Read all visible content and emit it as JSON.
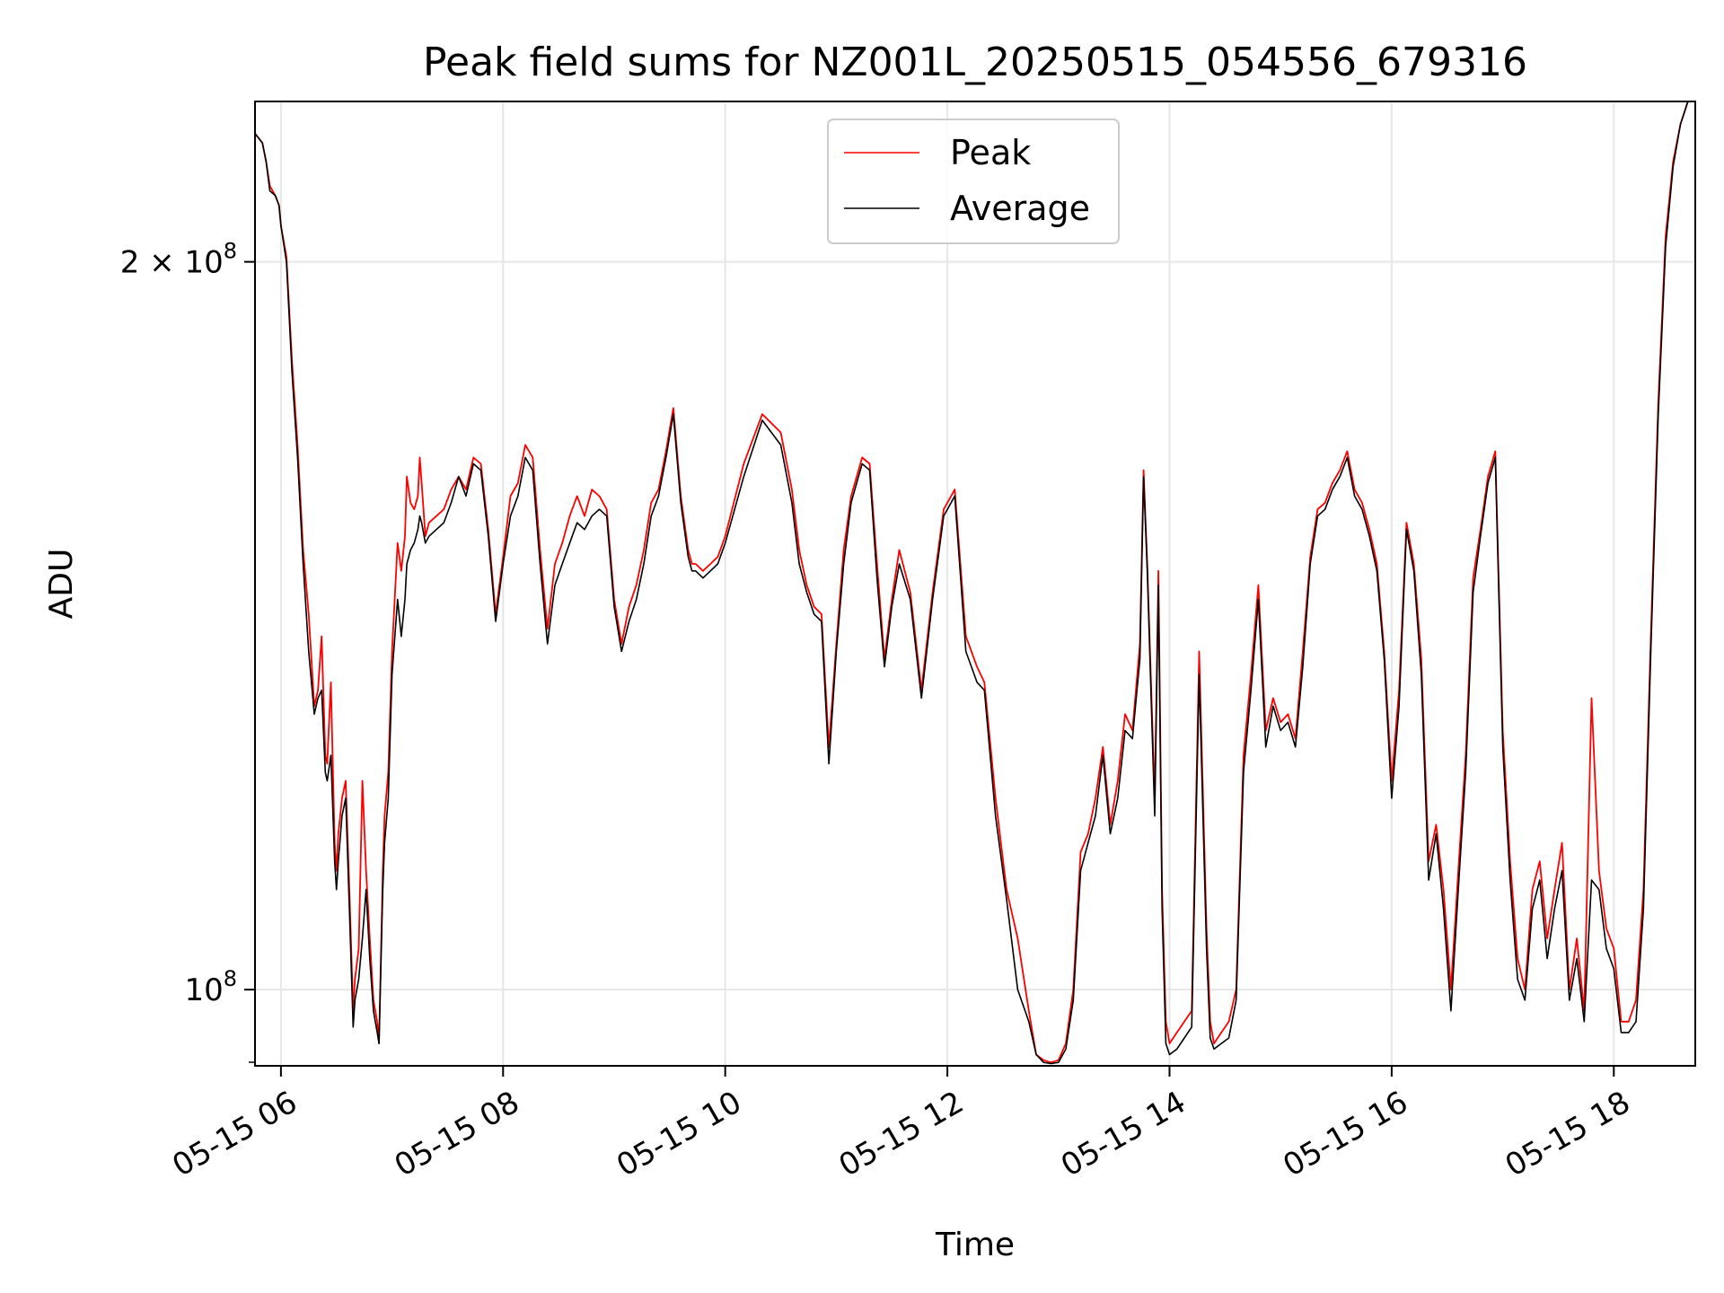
{
  "chart_data": {
    "type": "line",
    "title": "Peak field sums for NZ001L_20250515_054556_679316",
    "xlabel": "Time",
    "ylabel": "ADU",
    "yscale": "log",
    "xlim": [
      "2025-05-15 05:46",
      "2025-05-15 18:44"
    ],
    "ylim": [
      93000000.0,
      233000000.0
    ],
    "x_ticks": [
      "2025-05-15 06:00",
      "2025-05-15 08:00",
      "2025-05-15 10:00",
      "2025-05-15 12:00",
      "2025-05-15 14:00",
      "2025-05-15 16:00",
      "2025-05-15 18:00"
    ],
    "x_tick_labels": [
      "05-15 06",
      "05-15 08",
      "05-15 10",
      "05-15 12",
      "05-15 14",
      "05-15 16",
      "05-15 18"
    ],
    "y_ticks": [
      {
        "value": 200000000,
        "mantissa": "2",
        "times": "×",
        "base": "10",
        "exp": "8"
      },
      {
        "value": 100000000,
        "mantissa": "",
        "times": "",
        "base": "10",
        "exp": "8"
      }
    ],
    "grid": true,
    "legend_position": "top-center",
    "series": [
      {
        "name": "Peak",
        "color": "#ff0000",
        "x": [
          "05:46",
          "05:50",
          "05:52",
          "05:54",
          "05:57",
          "05:59",
          "06:00",
          "06:03",
          "06:06",
          "06:09",
          "06:12",
          "06:15",
          "06:18",
          "06:20",
          "06:22",
          "06:24",
          "06:25",
          "06:27",
          "06:29",
          "06:30",
          "06:31",
          "06:33",
          "06:35",
          "06:37",
          "06:39",
          "06:40",
          "06:42",
          "06:44",
          "06:46",
          "06:48",
          "06:50",
          "06:52",
          "06:53",
          "06:55",
          "06:56",
          "06:58",
          "07:00",
          "07:03",
          "07:05",
          "07:07",
          "07:08",
          "07:10",
          "07:12",
          "07:14",
          "07:15",
          "07:16",
          "07:18",
          "07:20",
          "07:24",
          "07:28",
          "07:32",
          "07:36",
          "07:40",
          "07:44",
          "07:48",
          "07:52",
          "07:56",
          "08:00",
          "08:04",
          "08:08",
          "08:12",
          "08:16",
          "08:20",
          "08:24",
          "08:28",
          "08:32",
          "08:36",
          "08:40",
          "08:44",
          "08:48",
          "08:52",
          "08:56",
          "09:00",
          "09:04",
          "09:08",
          "09:12",
          "09:16",
          "09:20",
          "09:24",
          "09:28",
          "09:32",
          "09:36",
          "09:40",
          "09:42",
          "09:44",
          "09:48",
          "09:52",
          "09:56",
          "10:00",
          "10:10",
          "10:20",
          "10:30",
          "10:36",
          "10:40",
          "10:44",
          "10:48",
          "10:52",
          "10:56",
          "11:00",
          "11:04",
          "11:08",
          "11:12",
          "11:14",
          "11:18",
          "11:22",
          "11:26",
          "11:30",
          "11:34",
          "11:40",
          "11:46",
          "11:52",
          "11:58",
          "12:04",
          "12:10",
          "12:16",
          "12:20",
          "12:26",
          "12:32",
          "12:38",
          "12:44",
          "12:48",
          "12:52",
          "12:56",
          "13:00",
          "13:04",
          "13:08",
          "13:12",
          "13:16",
          "13:20",
          "13:24",
          "13:28",
          "13:32",
          "13:36",
          "13:40",
          "13:44",
          "13:46",
          "13:48",
          "13:52",
          "13:54",
          "13:56",
          "13:58",
          "14:00",
          "14:04",
          "14:08",
          "14:12",
          "14:16",
          "14:20",
          "14:22",
          "14:24",
          "14:28",
          "14:32",
          "14:36",
          "14:40",
          "14:44",
          "14:48",
          "14:52",
          "14:56",
          "15:00",
          "15:04",
          "15:08",
          "15:12",
          "15:16",
          "15:20",
          "15:24",
          "15:28",
          "15:32",
          "15:36",
          "15:40",
          "15:44",
          "15:48",
          "15:52",
          "15:56",
          "16:00",
          "16:04",
          "16:08",
          "16:12",
          "16:16",
          "16:20",
          "16:24",
          "16:28",
          "16:32",
          "16:36",
          "16:40",
          "16:44",
          "16:48",
          "16:52",
          "16:56",
          "17:00",
          "17:04",
          "17:08",
          "17:12",
          "17:16",
          "17:20",
          "17:24",
          "17:28",
          "17:32",
          "17:36",
          "17:40",
          "17:44",
          "17:48",
          "17:52",
          "17:56",
          "18:00",
          "18:04",
          "18:08",
          "18:12",
          "18:16",
          "18:20",
          "18:24",
          "18:28",
          "18:32",
          "18:36",
          "18:40",
          "18:44"
        ],
        "values": [
          226000000,
          224000000,
          220000000,
          215000000,
          213000000,
          211000000,
          207000000,
          201000000,
          182000000,
          168000000,
          152000000,
          143000000,
          131000000,
          133000000,
          140000000,
          125000000,
          124000000,
          134000000,
          115000000,
          112000000,
          116000000,
          120000000,
          122000000,
          110000000,
          98000000,
          101000000,
          104000000,
          122000000,
          112000000,
          105000000,
          99000000,
          97000000,
          95000000,
          112000000,
          118000000,
          123000000,
          138000000,
          153000000,
          149000000,
          154000000,
          163000000,
          159000000,
          158000000,
          160000000,
          166000000,
          162000000,
          154000000,
          156000000,
          157000000,
          158000000,
          161000000,
          163000000,
          161000000,
          166000000,
          165000000,
          155000000,
          143000000,
          151000000,
          160000000,
          162000000,
          168000000,
          166000000,
          152000000,
          141000000,
          150000000,
          153000000,
          157000000,
          160000000,
          157000000,
          161000000,
          160000000,
          158000000,
          145000000,
          139000000,
          144000000,
          147000000,
          152000000,
          159000000,
          161000000,
          167000000,
          174000000,
          160000000,
          152000000,
          150000000,
          150000000,
          149000000,
          150000000,
          151000000,
          154000000,
          165000000,
          173000000,
          170000000,
          161000000,
          152000000,
          147000000,
          144000000,
          143000000,
          126000000,
          139000000,
          152000000,
          160000000,
          164000000,
          166000000,
          165000000,
          150000000,
          137000000,
          145000000,
          152000000,
          146000000,
          133000000,
          146000000,
          158000000,
          161000000,
          140000000,
          136000000,
          134000000,
          120000000,
          110000000,
          105000000,
          98000000,
          94000000,
          93500000,
          93300000,
          93500000,
          95000000,
          100000000,
          114000000,
          116000000,
          120000000,
          126000000,
          117000000,
          122000000,
          130000000,
          128000000,
          139000000,
          164000000,
          150000000,
          120000000,
          149000000,
          110000000,
          97000000,
          95000000,
          96000000,
          97000000,
          98000000,
          138000000,
          106000000,
          97000000,
          95000000,
          96000000,
          97000000,
          100000000,
          125000000,
          135000000,
          147000000,
          128000000,
          132000000,
          129000000,
          130000000,
          127000000,
          138000000,
          151000000,
          158000000,
          159000000,
          162000000,
          164000000,
          167000000,
          161000000,
          159000000,
          155000000,
          150000000,
          138000000,
          122000000,
          133000000,
          156000000,
          150000000,
          137000000,
          113000000,
          117000000,
          110000000,
          100000000,
          112000000,
          125000000,
          148000000,
          155000000,
          163000000,
          167000000,
          128000000,
          113000000,
          103000000,
          100000000,
          110000000,
          113000000,
          105000000,
          110000000,
          115000000,
          100000000,
          105000000,
          98000000,
          132000000,
          112000000,
          106000000,
          104000000,
          97000000,
          97000000,
          99000000,
          110000000,
          140000000,
          175000000,
          205000000,
          220000000,
          228000000,
          233000000,
          233000000
        ]
      },
      {
        "name": "Average",
        "color": "#000000",
        "x": [
          "05:46",
          "05:50",
          "05:52",
          "05:54",
          "05:57",
          "05:59",
          "06:00",
          "06:03",
          "06:06",
          "06:09",
          "06:12",
          "06:15",
          "06:18",
          "06:20",
          "06:22",
          "06:24",
          "06:25",
          "06:27",
          "06:29",
          "06:30",
          "06:31",
          "06:33",
          "06:35",
          "06:37",
          "06:39",
          "06:40",
          "06:42",
          "06:44",
          "06:46",
          "06:48",
          "06:50",
          "06:52",
          "06:53",
          "06:55",
          "06:56",
          "06:58",
          "07:00",
          "07:03",
          "07:05",
          "07:07",
          "07:08",
          "07:10",
          "07:12",
          "07:14",
          "07:15",
          "07:16",
          "07:18",
          "07:20",
          "07:24",
          "07:28",
          "07:32",
          "07:36",
          "07:40",
          "07:44",
          "07:48",
          "07:52",
          "07:56",
          "08:00",
          "08:04",
          "08:08",
          "08:12",
          "08:16",
          "08:20",
          "08:24",
          "08:28",
          "08:32",
          "08:36",
          "08:40",
          "08:44",
          "08:48",
          "08:52",
          "08:56",
          "09:00",
          "09:04",
          "09:08",
          "09:12",
          "09:16",
          "09:20",
          "09:24",
          "09:28",
          "09:32",
          "09:36",
          "09:40",
          "09:42",
          "09:44",
          "09:48",
          "09:52",
          "09:56",
          "10:00",
          "10:10",
          "10:20",
          "10:30",
          "10:36",
          "10:40",
          "10:44",
          "10:48",
          "10:52",
          "10:56",
          "11:00",
          "11:04",
          "11:08",
          "11:12",
          "11:14",
          "11:18",
          "11:22",
          "11:26",
          "11:30",
          "11:34",
          "11:40",
          "11:46",
          "11:52",
          "11:58",
          "12:04",
          "12:10",
          "12:16",
          "12:20",
          "12:26",
          "12:32",
          "12:38",
          "12:44",
          "12:48",
          "12:52",
          "12:56",
          "13:00",
          "13:04",
          "13:08",
          "13:12",
          "13:16",
          "13:20",
          "13:24",
          "13:28",
          "13:32",
          "13:36",
          "13:40",
          "13:44",
          "13:46",
          "13:48",
          "13:52",
          "13:54",
          "13:56",
          "13:58",
          "14:00",
          "14:04",
          "14:08",
          "14:12",
          "14:16",
          "14:20",
          "14:22",
          "14:24",
          "14:28",
          "14:32",
          "14:36",
          "14:40",
          "14:44",
          "14:48",
          "14:52",
          "14:56",
          "15:00",
          "15:04",
          "15:08",
          "15:12",
          "15:16",
          "15:20",
          "15:24",
          "15:28",
          "15:32",
          "15:36",
          "15:40",
          "15:44",
          "15:48",
          "15:52",
          "15:56",
          "16:00",
          "16:04",
          "16:08",
          "16:12",
          "16:16",
          "16:20",
          "16:24",
          "16:28",
          "16:32",
          "16:36",
          "16:40",
          "16:44",
          "16:48",
          "16:52",
          "16:56",
          "17:00",
          "17:04",
          "17:08",
          "17:12",
          "17:16",
          "17:20",
          "17:24",
          "17:28",
          "17:32",
          "17:36",
          "17:40",
          "17:44",
          "17:48",
          "17:52",
          "17:56",
          "18:00",
          "18:04",
          "18:08",
          "18:12",
          "18:16",
          "18:20",
          "18:24",
          "18:28",
          "18:32",
          "18:36",
          "18:40",
          "18:44"
        ],
        "values": [
          226000000,
          224000000,
          220000000,
          214000000,
          213000000,
          211000000,
          207000000,
          200000000,
          180000000,
          166000000,
          150000000,
          138000000,
          130000000,
          132000000,
          133000000,
          123000000,
          122000000,
          125000000,
          113000000,
          110000000,
          113000000,
          118000000,
          120000000,
          108000000,
          96500000,
          99000000,
          101000000,
          105000000,
          110000000,
          103000000,
          98000000,
          96000000,
          95000000,
          110000000,
          115000000,
          120000000,
          135000000,
          145000000,
          140000000,
          145000000,
          150000000,
          152000000,
          153000000,
          155000000,
          157000000,
          156000000,
          153000000,
          154000000,
          155000000,
          156000000,
          159000000,
          163000000,
          160000000,
          165000000,
          164000000,
          154000000,
          142000000,
          150000000,
          157000000,
          160000000,
          166000000,
          164000000,
          150000000,
          139000000,
          147000000,
          150000000,
          153000000,
          156000000,
          155000000,
          157000000,
          158000000,
          157000000,
          144000000,
          138000000,
          142000000,
          145000000,
          150000000,
          157000000,
          160000000,
          166000000,
          173000000,
          159000000,
          151000000,
          149000000,
          149000000,
          148000000,
          149000000,
          150000000,
          153000000,
          163000000,
          172000000,
          168000000,
          159000000,
          150000000,
          146000000,
          143000000,
          142000000,
          124000000,
          138000000,
          150000000,
          159000000,
          163000000,
          165000000,
          164000000,
          148000000,
          136000000,
          144000000,
          150000000,
          145000000,
          132000000,
          145000000,
          157000000,
          160000000,
          138000000,
          134000000,
          133000000,
          118000000,
          109000000,
          100000000,
          97000000,
          94000000,
          93300000,
          93200000,
          93300000,
          94500000,
          99000000,
          112000000,
          115000000,
          118000000,
          125000000,
          116000000,
          120000000,
          128000000,
          127000000,
          137000000,
          163000000,
          149000000,
          118000000,
          147000000,
          108000000,
          95000000,
          94000000,
          94500000,
          95500000,
          96500000,
          135000000,
          104000000,
          95500000,
          94500000,
          95000000,
          95500000,
          99000000,
          123000000,
          133000000,
          145000000,
          126000000,
          131000000,
          128000000,
          129000000,
          126000000,
          136000000,
          150000000,
          157000000,
          158000000,
          161000000,
          163000000,
          166000000,
          160000000,
          158000000,
          154000000,
          149000000,
          137000000,
          120000000,
          131000000,
          155000000,
          149000000,
          135000000,
          111000000,
          116000000,
          108000000,
          98000000,
          110000000,
          123000000,
          146000000,
          154000000,
          162000000,
          166000000,
          126000000,
          111000000,
          101000000,
          99000000,
          108000000,
          111000000,
          103000000,
          108000000,
          112000000,
          99000000,
          103000000,
          97000000,
          111000000,
          110000000,
          104000000,
          102000000,
          96000000,
          96000000,
          97000000,
          108000000,
          138000000,
          173000000,
          203000000,
          219000000,
          228000000,
          233000000,
          233000000
        ]
      }
    ]
  }
}
